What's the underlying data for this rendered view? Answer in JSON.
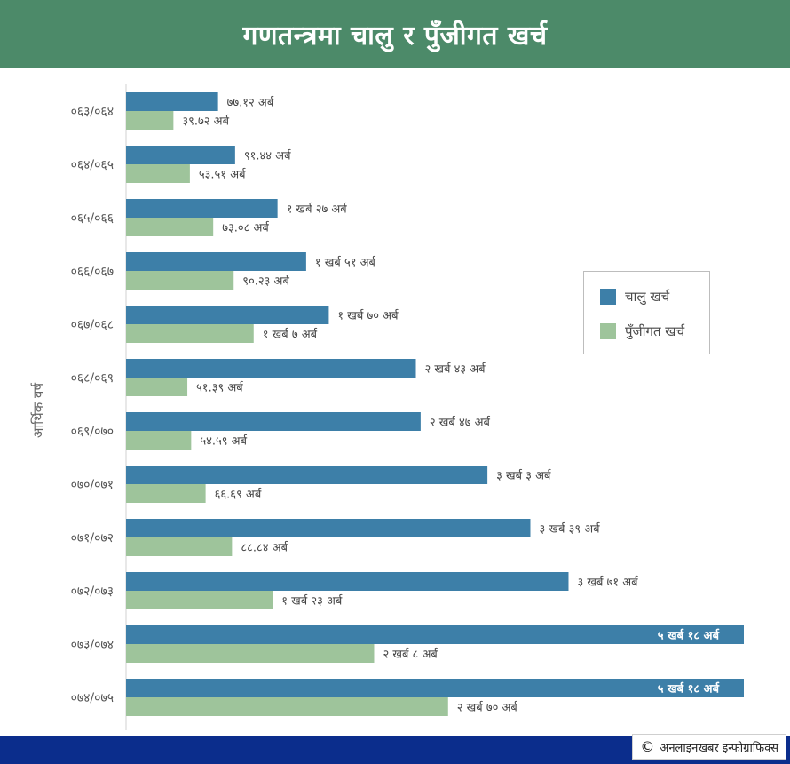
{
  "header": {
    "title": "गणतन्त्रमा चालु र पुँजीगत खर्च"
  },
  "footer": {
    "copyright_symbol": "©",
    "credit": "अनलाइनखबर इन्फोग्राफिक्स"
  },
  "colors": {
    "header_bg": "#4c8a69",
    "footer_bg": "#0b2d8c",
    "current": "#3d7fa8",
    "capital": "#9ec49b"
  },
  "chart_data": {
    "type": "bar",
    "orientation": "horizontal",
    "title": "गणतन्त्रमा चालु र पुँजीगत खर्च",
    "ylabel": "आर्थिक वर्ष",
    "xlabel": "",
    "xlim": [
      0,
      520
    ],
    "unit": "अर्ब",
    "grid": false,
    "legend_position": "right",
    "categories": [
      "०६३/०६४",
      "०६४/०६५",
      "०६५/०६६",
      "०६६/०६७",
      "०६७/०६८",
      "०६८/०६९",
      "०६९/०७०",
      "०७०/०७१",
      "०७१/०७२",
      "०७२/०७३",
      "०७३/०७४",
      "०७४/०७५"
    ],
    "series": [
      {
        "name": "चालु खर्च",
        "values": [
          77.12,
          91.44,
          127,
          151,
          170,
          243,
          247,
          303,
          339,
          371,
          518,
          518
        ],
        "labels": [
          "७७.१२ अर्ब",
          "९१.४४ अर्ब",
          "१ खर्ब २७ अर्ब",
          "१ खर्ब ५१ अर्ब",
          "१ खर्ब ७० अर्ब",
          "२ खर्ब ४३ अर्ब",
          "२ खर्ब ४७ अर्ब",
          "३ खर्ब ३ अर्ब",
          "३ खर्ब ३९ अर्ब",
          "३ खर्ब ७१ अर्ब",
          "५ खर्ब १८ अर्ब",
          "५ खर्ब १८ अर्ब"
        ]
      },
      {
        "name": "पुँजीगत खर्च",
        "values": [
          39.72,
          53.51,
          73.08,
          90.23,
          107,
          51.39,
          54.59,
          66.69,
          88.84,
          123,
          208,
          270
        ],
        "labels": [
          "३९.७२ अर्ब",
          "५३.५१ अर्ब",
          "७३.०८ अर्ब",
          "९०.२३ अर्ब",
          "१ खर्ब ७ अर्ब",
          "५१.३९ अर्ब",
          "५४.५९ अर्ब",
          "६६.६९ अर्ब",
          "८८.८४ अर्ब",
          "१ खर्ब २३ अर्ब",
          "२ खर्ब ८ अर्ब",
          "२ खर्ब ७० अर्ब"
        ]
      }
    ]
  }
}
